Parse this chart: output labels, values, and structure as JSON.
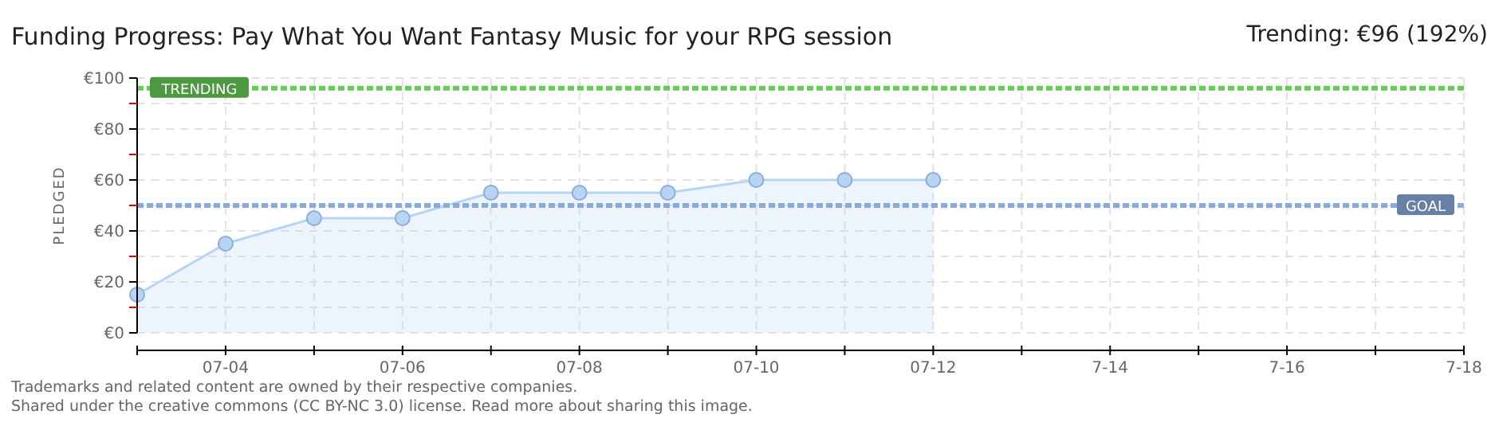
{
  "chart_data": {
    "type": "area",
    "title": "Funding Progress: Pay What You Want Fantasy Music for your RPG session",
    "subtitle": "Trending: €96 (192%)",
    "ylabel": "PLEDGED",
    "x": [
      "--07-03",
      "--07-04",
      "--07-05",
      "--07-06",
      "--07-07",
      "--07-08",
      "--07-09",
      "--07-10",
      "--07-11",
      "--07-12"
    ],
    "series": [
      {
        "color": "#b8d4f4",
        "values": [
          15,
          35,
          45,
          45,
          55,
          55,
          55,
          60,
          60,
          60
        ]
      }
    ],
    "xlim": [
      "--07-03",
      "--07-18"
    ],
    "xticks": [
      {
        "value": "--07-03",
        "label": null
      },
      {
        "value": "--07-04",
        "label": "07-04"
      },
      {
        "value": "--07-05",
        "label": null
      },
      {
        "value": "--07-06",
        "label": "07-06"
      },
      {
        "value": "--07-07",
        "label": null
      },
      {
        "value": "--07-08",
        "label": "07-08"
      },
      {
        "value": "--07-09",
        "label": null
      },
      {
        "value": "--07-10",
        "label": "07-10"
      },
      {
        "value": "--07-11",
        "label": null
      },
      {
        "value": "--07-12",
        "label": "07-12"
      },
      {
        "value": "--07-13",
        "label": null
      },
      {
        "value": "--07-14",
        "label": "7-14"
      },
      {
        "value": "--07-15",
        "label": null
      },
      {
        "value": "--07-16",
        "label": "7-16"
      },
      {
        "value": "--07-17",
        "label": null
      },
      {
        "value": "--07-18",
        "label": "7-18"
      }
    ],
    "ylim": [
      0,
      100
    ],
    "yticks": [
      {
        "value": 0,
        "label": "€0"
      },
      {
        "value": 10,
        "label": null
      },
      {
        "value": 20,
        "label": "€20"
      },
      {
        "value": 30,
        "label": null
      },
      {
        "value": 40,
        "label": "€40"
      },
      {
        "value": 50,
        "label": null
      },
      {
        "value": 60,
        "label": "€60"
      },
      {
        "value": 70,
        "label": null
      },
      {
        "value": 80,
        "label": "€80"
      },
      {
        "value": 90,
        "label": null
      },
      {
        "value": 100,
        "label": "€100"
      }
    ],
    "grid": true,
    "marker": "circle",
    "ref_lines": [
      {
        "axis": "y",
        "value": 96,
        "label": "TRENDING",
        "color": "#66cc55",
        "line_style": "dotted"
      },
      {
        "axis": "y",
        "value": 50,
        "label": "GOAL",
        "color": "#88aadd",
        "line_style": "dotted"
      }
    ],
    "annotations": [
      "Trademarks and related content are owned by their respective companies.",
      "Shared under the creative commons (CC BY-NC 3.0) license. Read more about sharing this image."
    ]
  }
}
